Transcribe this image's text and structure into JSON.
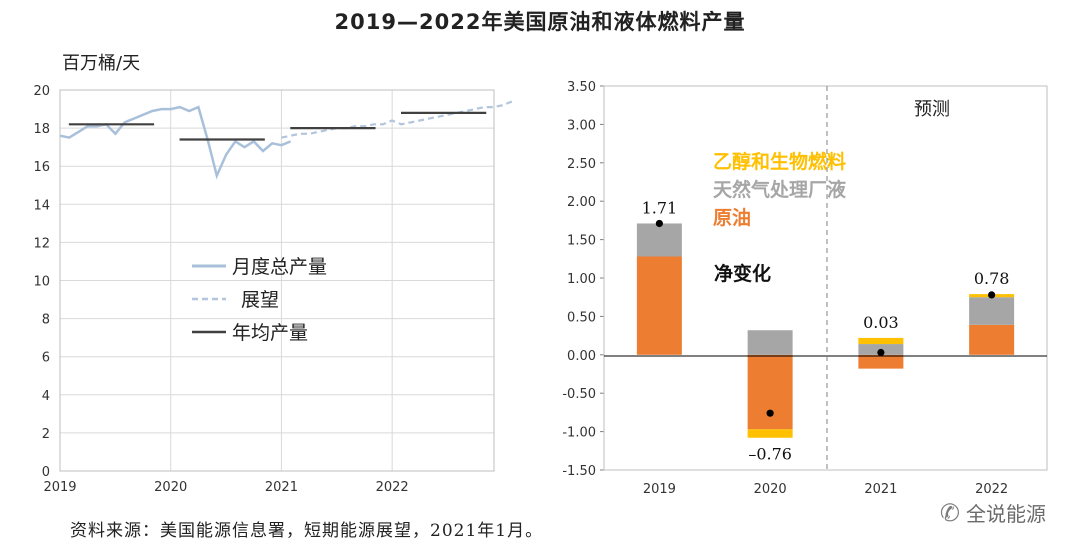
{
  "title": "2019—2022年美国原油和液体燃料产量",
  "source": "资料来源：美国能源信息署，短期能源展望，2021年1月。",
  "watermark": "全说能源",
  "colors": {
    "monthly": "#a9c0db",
    "forecast": "#b3c5dd",
    "annual": "#404040",
    "crude": "#ed7d31",
    "ngl": "#a6a6a6",
    "ethanol": "#ffc000",
    "net": "#000000"
  },
  "chart_data": [
    {
      "type": "line",
      "ylabel": "百万桶/天",
      "ylim": [
        0,
        20
      ],
      "yticks": [
        "0",
        "2",
        "4",
        "6",
        "8",
        "10",
        "12",
        "14",
        "16",
        "18",
        "20"
      ],
      "xticks": [
        "2019",
        "2020",
        "2021",
        "2022"
      ],
      "legend": [
        "月度总产量",
        "展望",
        "年均产量"
      ],
      "series": [
        {
          "name": "月度总产量",
          "x_start": 2019.0,
          "x_step": 0.08333,
          "values": [
            17.6,
            17.5,
            17.8,
            18.1,
            18.1,
            18.2,
            17.7,
            18.3,
            18.5,
            18.7,
            18.9,
            19.0,
            19.0,
            19.1,
            18.9,
            19.1,
            17.4,
            15.5,
            16.6,
            17.3,
            17.0,
            17.3,
            16.8,
            17.2,
            17.1,
            17.3
          ]
        },
        {
          "name": "展望",
          "x_start": 2021.0,
          "x_step": 0.08333,
          "values": [
            17.5,
            17.6,
            17.7,
            17.7,
            17.8,
            17.9,
            18.0,
            18.0,
            18.1,
            18.1,
            18.2,
            18.2,
            18.4,
            18.2,
            18.3,
            18.4,
            18.5,
            18.6,
            18.7,
            18.8,
            18.9,
            19.0,
            19.1,
            19.1,
            19.2,
            19.4
          ]
        },
        {
          "name": "年均产量",
          "segments": [
            {
              "x0": 2019.08,
              "x1": 2019.85,
              "y": 18.2
            },
            {
              "x0": 2020.08,
              "x1": 2020.85,
              "y": 17.4
            },
            {
              "x0": 2021.08,
              "x1": 2021.85,
              "y": 18.0
            },
            {
              "x0": 2022.08,
              "x1": 2022.85,
              "y": 18.8
            }
          ]
        }
      ]
    },
    {
      "type": "bar",
      "stacked": true,
      "categories": [
        "2019",
        "2020",
        "2021",
        "2022"
      ],
      "ylim": [
        -1.5,
        3.5
      ],
      "yticks": [
        "3.50",
        "3.00",
        "2.50",
        "2.00",
        "1.50",
        "1.00",
        "0.50",
        "0.00",
        "-0.50",
        "-1.00",
        "-1.50"
      ],
      "forecast_label": "预测",
      "forecast_from": "2021",
      "net_title": "净变化",
      "series": [
        {
          "name": "原油",
          "values": [
            1.28,
            -0.97,
            -0.18,
            0.39
          ]
        },
        {
          "name": "天然气处理厂液",
          "values": [
            0.43,
            0.32,
            0.14,
            0.36
          ]
        },
        {
          "name": "乙醇和生物燃料",
          "values": [
            0.0,
            -0.11,
            0.08,
            0.04
          ]
        }
      ],
      "net_values": [
        1.71,
        -0.76,
        0.03,
        0.78
      ],
      "net_labels": [
        "1.71",
        "–0.76",
        "0.03",
        "0.78"
      ]
    }
  ]
}
